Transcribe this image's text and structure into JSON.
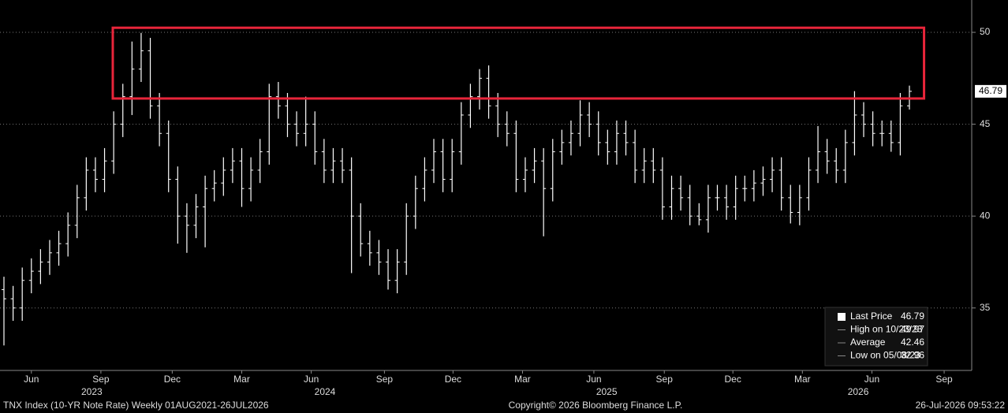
{
  "chart_data": {
    "type": "ohlc",
    "series": [
      {
        "name": "Last Price",
        "color": "#ffffff",
        "open": [
          36.0,
          35.5,
          35.0,
          36.5,
          37.0,
          37.5,
          38.0,
          38.5,
          39.5,
          41.0,
          42.5,
          42.0,
          43.0,
          45.0,
          46.5,
          48.0,
          49.0,
          46.0,
          44.5,
          42.0,
          40.0,
          39.5,
          40.5,
          41.5,
          41.8,
          42.5,
          43.0,
          41.5,
          42.5,
          43.5,
          46.5,
          46.0,
          45.0,
          44.5,
          45.0,
          43.5,
          42.5,
          43.0,
          42.5,
          40.0,
          38.5,
          38.0,
          37.5,
          36.5,
          37.5,
          40.0,
          41.5,
          42.5,
          43.5,
          42.0,
          43.5,
          45.5,
          46.5,
          47.5,
          46.0,
          45.0,
          44.5,
          42.0,
          42.5,
          43.0,
          41.5,
          43.5,
          44.0,
          44.5,
          45.5,
          45.0,
          44.0,
          43.5,
          44.5,
          44.0,
          42.5,
          43.0,
          42.5,
          40.5,
          41.5,
          41.0,
          40.0,
          39.8,
          41.0,
          41.0,
          40.5,
          41.5,
          41.5,
          41.8,
          42.0,
          42.5,
          41.0,
          40.2,
          41.0,
          42.5,
          43.5,
          43.0,
          42.5,
          44.0,
          45.5,
          45.0,
          44.5,
          44.5,
          44.0,
          46.0
        ],
        "high": [
          36.7,
          36.2,
          37.2,
          37.7,
          38.2,
          38.7,
          39.2,
          40.2,
          41.7,
          43.2,
          43.2,
          43.7,
          45.7,
          47.2,
          49.5,
          49.97,
          49.7,
          46.7,
          45.2,
          42.7,
          40.7,
          41.2,
          42.2,
          42.5,
          43.2,
          43.7,
          43.7,
          43.2,
          44.2,
          47.2,
          47.3,
          46.7,
          45.7,
          46.5,
          45.7,
          44.2,
          43.7,
          43.7,
          43.2,
          40.7,
          39.2,
          38.7,
          38.2,
          38.2,
          40.7,
          42.2,
          43.2,
          44.2,
          44.2,
          44.2,
          46.2,
          47.2,
          48.0,
          48.2,
          46.7,
          45.7,
          45.2,
          43.2,
          43.7,
          43.7,
          44.2,
          44.7,
          45.2,
          46.3,
          46.2,
          45.7,
          44.7,
          45.2,
          45.2,
          44.7,
          43.7,
          43.7,
          43.2,
          42.2,
          42.2,
          41.7,
          40.7,
          41.7,
          41.7,
          41.7,
          42.2,
          42.2,
          42.5,
          42.7,
          43.2,
          43.2,
          41.7,
          41.7,
          43.2,
          44.9,
          44.2,
          43.7,
          44.7,
          46.8,
          46.2,
          45.7,
          45.2,
          45.2,
          46.7,
          47.1
        ],
        "low": [
          32.96,
          34.3,
          34.3,
          35.8,
          36.3,
          36.8,
          37.3,
          37.8,
          38.8,
          40.3,
          41.3,
          41.3,
          42.3,
          44.3,
          45.5,
          47.3,
          45.3,
          43.8,
          41.3,
          38.5,
          38.0,
          38.8,
          38.3,
          40.8,
          41.1,
          41.8,
          40.5,
          40.8,
          41.8,
          42.8,
          45.3,
          44.3,
          43.8,
          43.8,
          42.8,
          41.8,
          41.8,
          41.8,
          36.9,
          37.8,
          37.3,
          36.8,
          36.0,
          35.8,
          36.8,
          39.3,
          40.8,
          41.8,
          41.3,
          41.3,
          42.8,
          44.8,
          45.8,
          45.3,
          44.3,
          43.8,
          41.3,
          41.3,
          41.8,
          38.9,
          40.8,
          42.8,
          43.3,
          43.8,
          44.3,
          43.3,
          42.8,
          42.8,
          43.3,
          41.8,
          41.8,
          41.8,
          39.8,
          39.8,
          40.3,
          39.5,
          39.5,
          39.1,
          40.3,
          39.8,
          39.8,
          40.8,
          40.8,
          41.1,
          41.3,
          40.3,
          39.6,
          39.5,
          40.3,
          41.8,
          42.3,
          41.8,
          41.8,
          43.3,
          44.3,
          43.8,
          43.8,
          43.5,
          43.3,
          45.8
        ],
        "close": [
          35.5,
          35.0,
          36.5,
          37.0,
          37.5,
          38.0,
          38.5,
          39.5,
          41.0,
          42.5,
          42.0,
          43.0,
          45.0,
          46.5,
          48.0,
          49.0,
          46.0,
          44.5,
          42.0,
          40.0,
          39.5,
          40.5,
          41.5,
          41.8,
          42.5,
          43.0,
          41.5,
          42.5,
          43.5,
          46.5,
          46.0,
          45.0,
          44.5,
          45.0,
          43.5,
          42.5,
          43.0,
          42.5,
          40.0,
          38.5,
          38.0,
          37.5,
          36.5,
          37.5,
          40.0,
          41.5,
          42.5,
          43.5,
          42.0,
          43.5,
          45.5,
          46.5,
          47.5,
          46.0,
          45.0,
          44.5,
          42.0,
          42.5,
          43.0,
          41.5,
          43.5,
          44.0,
          44.5,
          45.5,
          45.0,
          44.0,
          43.5,
          44.5,
          44.0,
          42.5,
          43.0,
          42.5,
          40.5,
          41.5,
          41.0,
          40.0,
          39.8,
          41.0,
          41.0,
          40.5,
          41.5,
          41.5,
          41.8,
          42.0,
          42.5,
          41.0,
          40.2,
          41.0,
          42.5,
          43.5,
          43.0,
          42.5,
          44.0,
          45.5,
          45.0,
          44.5,
          44.5,
          44.0,
          46.0,
          46.79
        ]
      }
    ],
    "ylim": [
      31.6,
      51.76
    ],
    "yticks": [
      35,
      40,
      45,
      50
    ],
    "grid": true,
    "xticks": [
      {
        "value": 3,
        "label": "Jun"
      },
      {
        "value": 10.6,
        "label": "Sep"
      },
      {
        "value": 18.4,
        "label": "Dec"
      },
      {
        "value": 26,
        "label": "Mar"
      },
      {
        "value": 33.6,
        "label": "Jun"
      },
      {
        "value": 41.6,
        "label": "Sep"
      },
      {
        "value": 49.1,
        "label": "Dec"
      },
      {
        "value": 56.7,
        "label": "Mar"
      },
      {
        "value": 64.5,
        "label": "Jun"
      },
      {
        "value": 72.2,
        "label": "Sep"
      },
      {
        "value": 79.7,
        "label": "Dec"
      },
      {
        "value": 87.3,
        "label": "Mar"
      },
      {
        "value": 94.9,
        "label": "Jun"
      },
      {
        "value": 102.8,
        "label": "Sep"
      }
    ],
    "year_ticks": [
      {
        "value": 9.6,
        "label": "2023"
      },
      {
        "value": 35.1,
        "label": "2024"
      },
      {
        "value": 65.9,
        "label": "2025"
      },
      {
        "value": 93.4,
        "label": "2026"
      }
    ],
    "highlight_box": {
      "x": [
        11.9,
        100.6
      ],
      "y": [
        46.4,
        50.25
      ],
      "color": "#e8253a"
    },
    "legend": "bottom-right",
    "legend_stats": [
      {
        "label": "Last Price",
        "value": 46.79
      },
      {
        "label": "High on 10/23/23",
        "value": 49.97
      },
      {
        "label": "Average",
        "value": 42.46
      },
      {
        "label": "Low on 05/08/23",
        "value": 32.96
      }
    ],
    "footer_left": "TNX Index (10-YR Note Rate) Weekly 01AUG2021-26JUL2026",
    "footer_center": "Copyright© 2026 Bloomberg Finance L.P.",
    "footer_right": "26-Jul-2026 09:53:22"
  }
}
